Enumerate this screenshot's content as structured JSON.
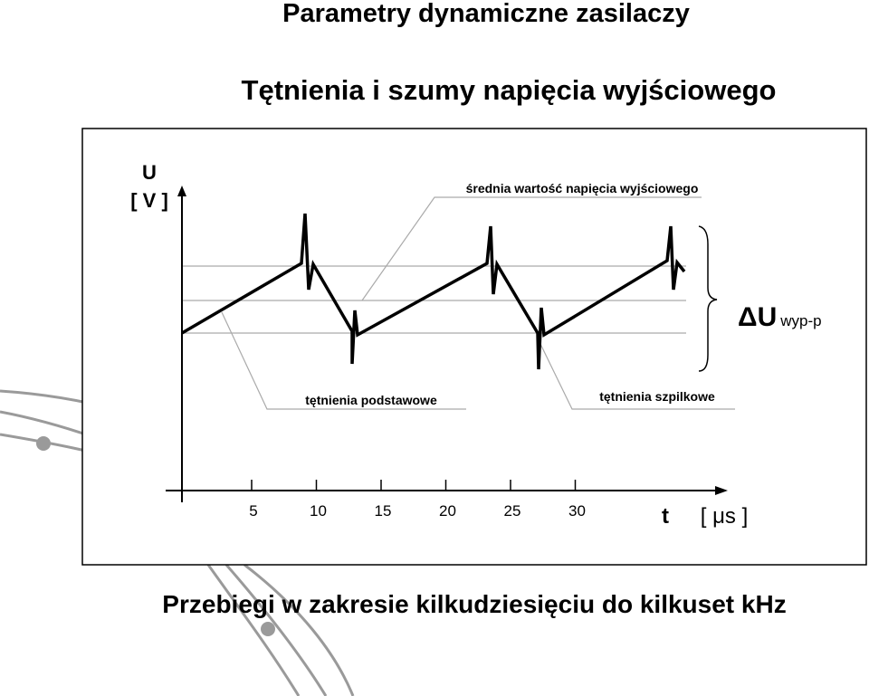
{
  "header": {
    "title": "Parametry dynamiczne zasilaczy",
    "subtitle": "Tętnienia i szumy napięcia wyjściowego"
  },
  "diagram": {
    "y_axis_label": [
      "U",
      "[ V ]"
    ],
    "x_axis_label": "t",
    "x_unit": "[ μs ]",
    "x_ticks": [
      "5",
      "10",
      "15",
      "20",
      "25",
      "30"
    ],
    "annotations": {
      "mean": "średnia wartość napięcia wyjściowego",
      "ripple": "tętnienia podstawowe",
      "spikes": "tętnienia szpilkowe"
    },
    "delta_label": "ΔU",
    "delta_sub": "wyp-p"
  },
  "footer": "Przebiegi w zakresie kilkudziesięciu do kilkuset kHz"
}
